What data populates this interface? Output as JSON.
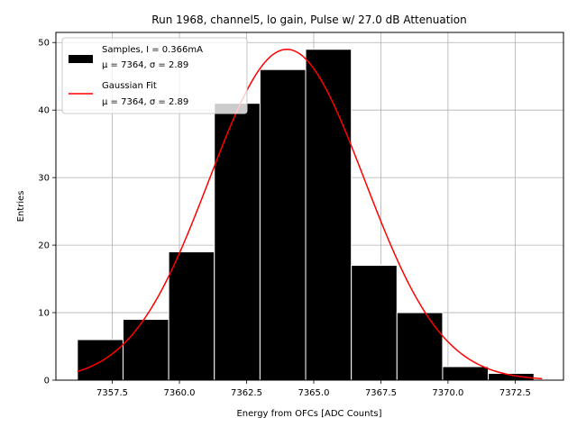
{
  "chart_data": {
    "type": "bar",
    "title": "Run 1968, channel5, lo gain, Pulse w/ 27.0 dB Attenuation",
    "xlabel": "Energy from OFCs [ADC Counts]",
    "ylabel": "Entries",
    "xlim": [
      7355.4,
      7374.3
    ],
    "ylim": [
      0,
      51.5
    ],
    "xticks": [
      7357.5,
      7360.0,
      7362.5,
      7365.0,
      7367.5,
      7370.0,
      7372.5
    ],
    "xtick_labels": [
      "7357.5",
      "7360.0",
      "7362.5",
      "7365.0",
      "7367.5",
      "7370.0",
      "7372.5"
    ],
    "yticks": [
      0,
      10,
      20,
      30,
      40,
      50
    ],
    "ytick_labels": [
      "0",
      "10",
      "20",
      "30",
      "40",
      "50"
    ],
    "grid": true,
    "legend_position": "top-left",
    "histogram": {
      "bin_edges": [
        7356.2,
        7357.9,
        7359.6,
        7361.3,
        7363.0,
        7364.7,
        7366.4,
        7368.1,
        7369.8,
        7371.5,
        7373.2
      ],
      "counts": [
        6,
        9,
        19,
        41,
        46,
        49,
        17,
        10,
        2,
        1
      ],
      "color": "#000000",
      "edge_color": "#ffffff"
    },
    "fit": {
      "type": "gaussian",
      "mu": 7364.0,
      "sigma": 2.89,
      "amplitude": 49,
      "x_range": [
        7356.2,
        7373.5
      ],
      "color": "#ff0000"
    },
    "legend": [
      {
        "line1": "Samples, I = 0.366mA",
        "line2": "μ = 7364, σ = 2.89",
        "swatch": "box"
      },
      {
        "line1": "Gaussian Fit",
        "line2": "μ = 7364, σ = 2.89",
        "swatch": "line"
      }
    ]
  }
}
